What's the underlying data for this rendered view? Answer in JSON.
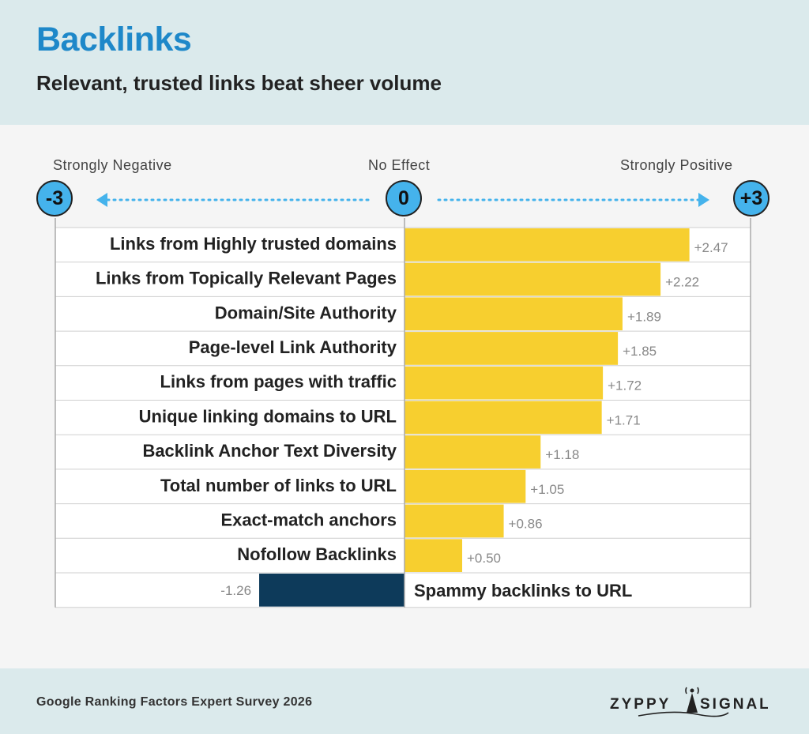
{
  "header": {
    "title": "Backlinks",
    "subtitle": "Relevant, trusted links beat sheer volume"
  },
  "scale": {
    "left_label": "Strongly Negative",
    "center_label": "No Effect",
    "right_label": "Strongly Positive",
    "left_value": "-3",
    "center_value": "0",
    "right_value": "+3"
  },
  "footer": {
    "source": "Google Ranking Factors Expert Survey 2026",
    "logo_text_left": "ZYPPY",
    "logo_text_right": "SIGNAL"
  },
  "colors": {
    "positive_bar": "#f7cf2f",
    "negative_bar": "#0d3a5a",
    "accent": "#45b3ec",
    "title": "#1e88c9"
  },
  "chart_data": {
    "type": "bar",
    "orientation": "horizontal",
    "xlim": [
      -3,
      3
    ],
    "categories": [
      "Links from Highly trusted domains",
      "Links from Topically Relevant Pages",
      "Domain/Site Authority",
      "Page-level Link Authority",
      "Links from pages with traffic",
      "Unique linking domains to URL",
      "Backlink Anchor Text Diversity",
      "Total number of links to URL",
      "Exact-match anchors",
      "Nofollow Backlinks",
      "Spammy backlinks to URL"
    ],
    "values": [
      2.47,
      2.22,
      1.89,
      1.85,
      1.72,
      1.71,
      1.18,
      1.05,
      0.86,
      0.5,
      -1.26
    ],
    "value_labels": [
      "+2.47",
      "+2.22",
      "+1.89",
      "+1.85",
      "+1.72",
      "+1.71",
      "+1.18",
      "+1.05",
      "+0.86",
      "+0.50",
      "-1.26"
    ]
  }
}
